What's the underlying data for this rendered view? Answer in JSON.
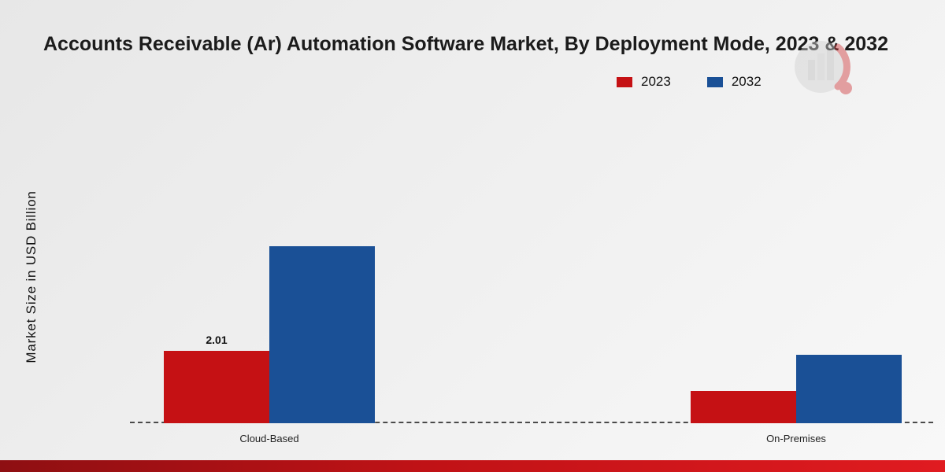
{
  "title": "Accounts Receivable (Ar) Automation Software Market, By Deployment Mode, 2023 & 2032",
  "ylabel": "Market Size in USD Billion",
  "chart_data": {
    "type": "bar",
    "title": "Accounts Receivable (Ar) Automation Software Market, By Deployment Mode, 2023 & 2032",
    "xlabel": "",
    "ylabel": "Market Size in USD Billion",
    "categories": [
      "Cloud-Based",
      "On-Premises"
    ],
    "series": [
      {
        "name": "2023",
        "color": "#c51114",
        "values": [
          2.01,
          0.9
        ]
      },
      {
        "name": "2032",
        "color": "#1a5096",
        "values": [
          4.9,
          1.9
        ]
      }
    ],
    "annotations": [
      {
        "category": "Cloud-Based",
        "series": "2023",
        "text": "2.01"
      }
    ],
    "ylim": [
      0,
      6
    ],
    "grid": false,
    "axis_style": "dashed-baseline-only",
    "legend_position": "top-right"
  },
  "footer": {
    "accent_color": "#c01216"
  }
}
